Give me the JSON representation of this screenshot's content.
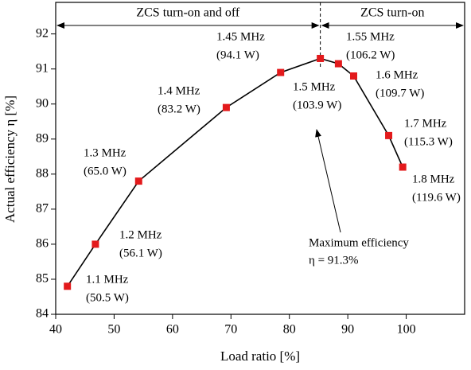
{
  "chart_data": {
    "type": "line",
    "x_label": "Load ratio [%]",
    "y_label": "Actual efficiency   η [%]",
    "x": [
      42,
      46.8,
      54.2,
      69.2,
      78.5,
      85.3,
      88.4,
      91,
      97,
      99.4
    ],
    "series": [
      {
        "color": "#e31a1c",
        "values": [
          84.8,
          86.0,
          87.8,
          89.9,
          90.9,
          91.3,
          91.15,
          90.8,
          89.1,
          88.2
        ]
      }
    ],
    "point_labels": [
      [
        "1.1 MHz",
        "(50.5 W)"
      ],
      [
        "1.2 MHz",
        "(56.1 W)"
      ],
      [
        "1.3 MHz",
        "(65.0 W)"
      ],
      [
        "1.4 MHz",
        "(83.2 W)"
      ],
      [
        "1.45 MHz",
        "(94.1 W)"
      ],
      [
        "1.5 MHz",
        "(103.9 W)"
      ],
      [
        "1.55 MHz",
        "(106.2 W)"
      ],
      [
        "1.6 MHz",
        "(109.7 W)"
      ],
      [
        "1.7 MHz",
        "(115.3 W)"
      ],
      [
        "1.8 MHz",
        "(119.6 W)"
      ]
    ],
    "regions": [
      {
        "label": "ZCS turn-on and off",
        "from": 40,
        "to": 85.3
      },
      {
        "label": "ZCS turn-on",
        "from": 85.3,
        "to": 110
      }
    ],
    "annotation": [
      "Maximum efficiency",
      "η = 91.3%"
    ],
    "xlim": [
      40,
      110
    ],
    "xticks": [
      40,
      50,
      60,
      70,
      80,
      90,
      100
    ],
    "ylim": [
      84,
      92.9
    ],
    "yticks": [
      84,
      85,
      86,
      87,
      88,
      89,
      90,
      91,
      92
    ]
  }
}
